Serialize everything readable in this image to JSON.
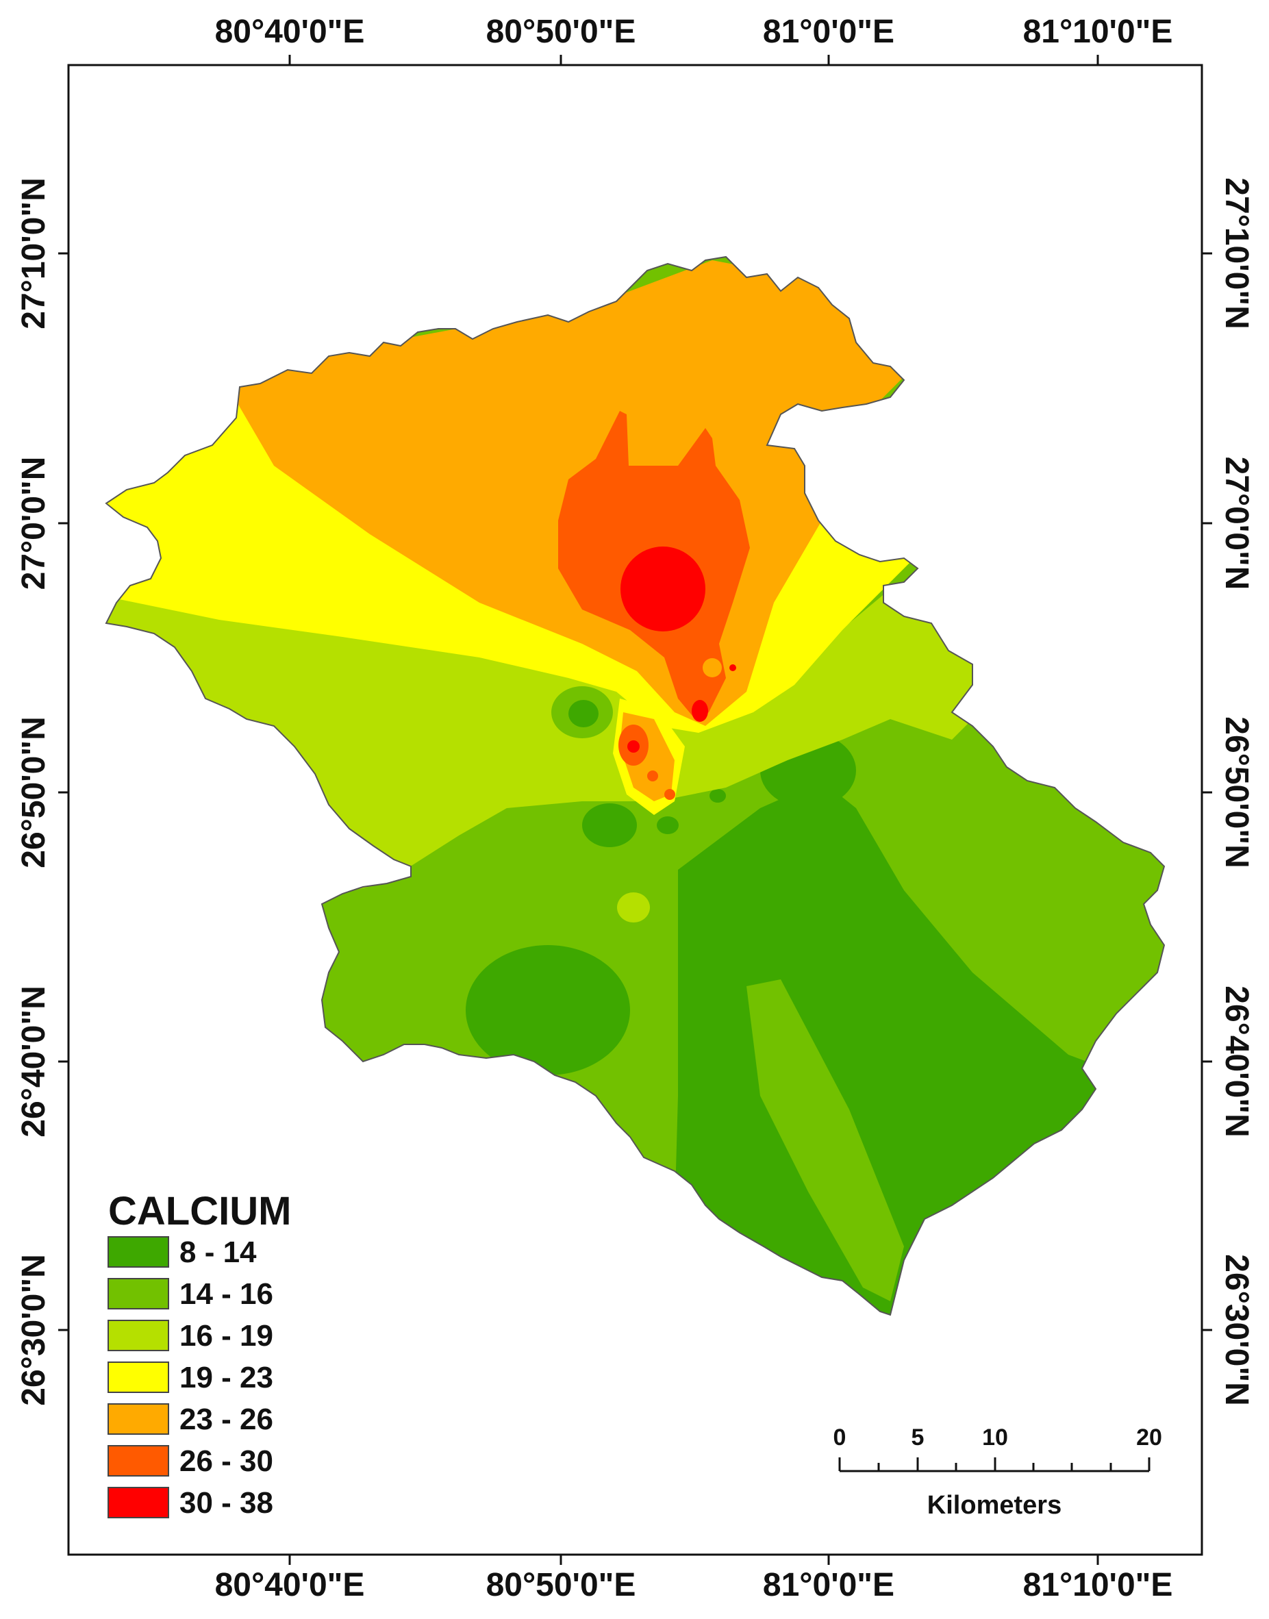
{
  "legend": {
    "title": "CALCIUM",
    "items": [
      {
        "label": "8 - 14",
        "color": "#3ea800"
      },
      {
        "label": "14 - 16",
        "color": "#72c100"
      },
      {
        "label": "16 - 19",
        "color": "#b5e000"
      },
      {
        "label": "19 - 23",
        "color": "#ffff00"
      },
      {
        "label": "23 - 26",
        "color": "#ffaa00"
      },
      {
        "label": "26 - 30",
        "color": "#ff5a00"
      },
      {
        "label": "30 - 38",
        "color": "#ff0000"
      }
    ]
  },
  "graticule": {
    "longitudes": [
      "80°40'0\"E",
      "80°50'0\"E",
      "81°0'0\"E",
      "81°10'0\"E"
    ],
    "latitudes": [
      "27°10'0\"N",
      "27°0'0\"N",
      "26°50'0\"N",
      "26°40'0\"N",
      "26°30'0\"N"
    ]
  },
  "scale_bar": {
    "ticks": [
      "0",
      "5",
      "10",
      "20"
    ],
    "unit": "Kilometers"
  }
}
